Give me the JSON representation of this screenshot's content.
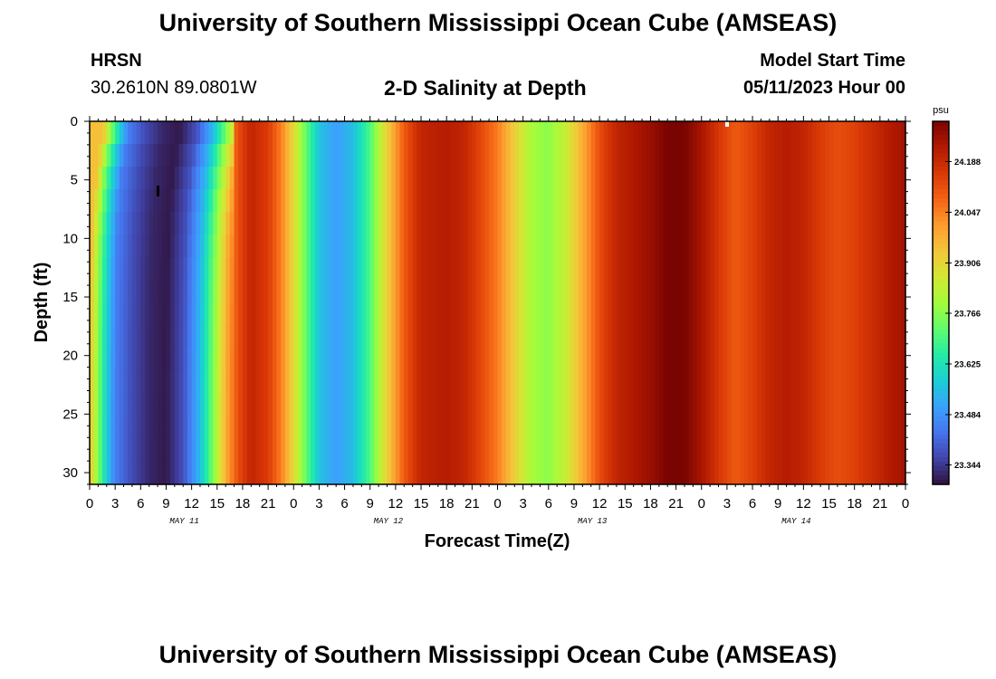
{
  "header": {
    "title": "University of Southern Mississippi Ocean Cube (AMSEAS)",
    "station": "HRSN",
    "coords": "30.2610N  89.0801W",
    "plot_title": "2-D Salinity at Depth",
    "start_label": "Model Start Time",
    "start_value": "05/11/2023 Hour 00"
  },
  "footer": {
    "title": "University of Southern Mississippi Ocean Cube (AMSEAS)"
  },
  "chart_data": {
    "type": "heatmap",
    "title": "2-D Salinity at Depth",
    "xlabel": "Forecast Time(Z)",
    "ylabel": "Depth (ft)",
    "x_range_hours": [
      0,
      96
    ],
    "ylim": [
      0,
      31
    ],
    "y_ticks": [
      0,
      5,
      10,
      15,
      20,
      25,
      30
    ],
    "x_tick_labels": [
      "0",
      "3",
      "6",
      "9",
      "12",
      "15",
      "18",
      "21",
      "0",
      "3",
      "6",
      "9",
      "12",
      "15",
      "18",
      "21",
      "0",
      "3",
      "6",
      "9",
      "12",
      "15",
      "18",
      "21",
      "0",
      "3",
      "6",
      "9",
      "12",
      "15",
      "18",
      "21",
      "0"
    ],
    "day_labels": [
      "MAY 11",
      "MAY 12",
      "MAY 13",
      "MAY 14"
    ],
    "colorbar": {
      "unit": "psu",
      "min": 23.29,
      "max": 24.3,
      "ticks": [
        "24.188",
        "24.047",
        "23.906",
        "23.766",
        "23.625",
        "23.484",
        "23.344"
      ],
      "tick_values": [
        24.188,
        24.047,
        23.906,
        23.766,
        23.625,
        23.484,
        23.344
      ]
    },
    "surface_salinity_psu": [
      {
        "h": 0,
        "v": 23.95
      },
      {
        "h": 1,
        "v": 23.75
      },
      {
        "h": 2,
        "v": 23.58
      },
      {
        "h": 3,
        "v": 23.45
      },
      {
        "h": 5,
        "v": 23.37
      },
      {
        "h": 7,
        "v": 23.32
      },
      {
        "h": 9,
        "v": 23.3
      },
      {
        "h": 11,
        "v": 23.38
      },
      {
        "h": 13,
        "v": 23.55
      },
      {
        "h": 14.5,
        "v": 23.75
      },
      {
        "h": 16,
        "v": 23.98
      },
      {
        "h": 17.5,
        "v": 24.12
      },
      {
        "h": 19,
        "v": 24.2
      },
      {
        "h": 21,
        "v": 24.15
      },
      {
        "h": 22.5,
        "v": 24.05
      },
      {
        "h": 24,
        "v": 23.9
      },
      {
        "h": 25.5,
        "v": 23.72
      },
      {
        "h": 27,
        "v": 23.56
      },
      {
        "h": 29,
        "v": 23.5
      },
      {
        "h": 31,
        "v": 23.55
      },
      {
        "h": 33,
        "v": 23.7
      },
      {
        "h": 35,
        "v": 23.92
      },
      {
        "h": 37,
        "v": 24.1
      },
      {
        "h": 39,
        "v": 24.2
      },
      {
        "h": 42,
        "v": 24.22
      },
      {
        "h": 44,
        "v": 24.2
      },
      {
        "h": 46,
        "v": 24.13
      },
      {
        "h": 48,
        "v": 24.05
      },
      {
        "h": 50,
        "v": 23.92
      },
      {
        "h": 52,
        "v": 23.8
      },
      {
        "h": 54,
        "v": 23.77
      },
      {
        "h": 56,
        "v": 23.85
      },
      {
        "h": 58,
        "v": 23.98
      },
      {
        "h": 60,
        "v": 24.12
      },
      {
        "h": 62,
        "v": 24.2
      },
      {
        "h": 64,
        "v": 24.23
      },
      {
        "h": 66,
        "v": 24.26
      },
      {
        "h": 68,
        "v": 24.3
      },
      {
        "h": 70,
        "v": 24.3
      },
      {
        "h": 72,
        "v": 24.24
      },
      {
        "h": 74,
        "v": 24.16
      },
      {
        "h": 76,
        "v": 24.1
      },
      {
        "h": 78,
        "v": 24.14
      },
      {
        "h": 80,
        "v": 24.2
      },
      {
        "h": 82,
        "v": 24.22
      },
      {
        "h": 84,
        "v": 24.2
      },
      {
        "h": 86,
        "v": 24.15
      },
      {
        "h": 88,
        "v": 24.12
      },
      {
        "h": 90,
        "v": 24.14
      },
      {
        "h": 92,
        "v": 24.18
      },
      {
        "h": 94,
        "v": 24.22
      },
      {
        "h": 96,
        "v": 24.25
      }
    ]
  },
  "colors": {
    "background": "#ffffff",
    "axis": "#000000",
    "colormap": [
      "#30123b",
      "#4145ab",
      "#4675ed",
      "#39a2fc",
      "#1bcfd4",
      "#24eca6",
      "#61fc6c",
      "#a4fc3b",
      "#d1e834",
      "#f3c63a",
      "#fe9b2d",
      "#f36315",
      "#d93806",
      "#b11901",
      "#7a0402"
    ]
  }
}
